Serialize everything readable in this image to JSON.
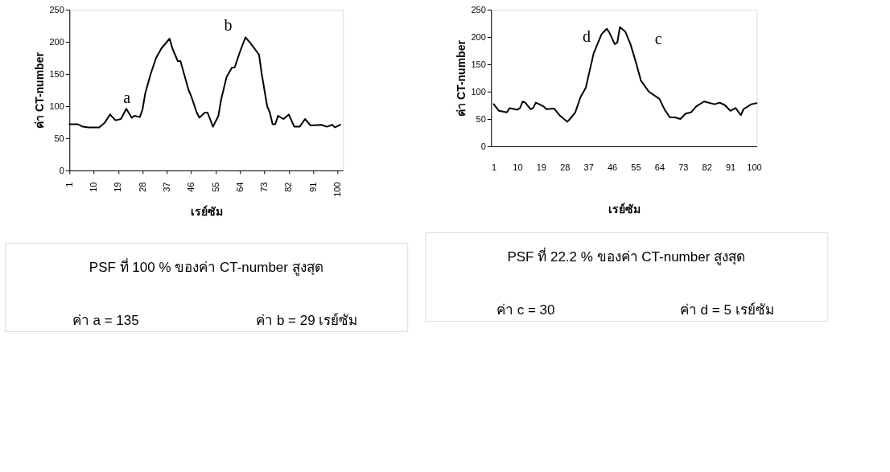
{
  "chart_data": [
    {
      "type": "line",
      "xlabel": "เรย์ซัม",
      "ylabel": "ค่า CT-number",
      "xlim": [
        1,
        102
      ],
      "ylim": [
        0,
        250
      ],
      "xticks": [
        1,
        10,
        19,
        28,
        37,
        46,
        55,
        64,
        73,
        82,
        91,
        100
      ],
      "yticks": [
        0,
        50,
        100,
        150,
        200,
        250
      ],
      "grid": false,
      "x": [
        1,
        4,
        6,
        8,
        12,
        14,
        16,
        18,
        20,
        22,
        24,
        25,
        27,
        28,
        29,
        31,
        33,
        35,
        38,
        39,
        41,
        42,
        45,
        46,
        48,
        49,
        51,
        52,
        54,
        56,
        57,
        59,
        61,
        62,
        64,
        66,
        68,
        71,
        72,
        74,
        75,
        76,
        77,
        78,
        80,
        82,
        84,
        86,
        88,
        90,
        94,
        96,
        98,
        99,
        101
      ],
      "series": [
        {
          "color": "#000000",
          "values": [
            72,
            72,
            68,
            67,
            67,
            74,
            87,
            78,
            80,
            96,
            82,
            85,
            83,
            95,
            120,
            150,
            175,
            190,
            205,
            190,
            170,
            170,
            125,
            115,
            90,
            82,
            90,
            90,
            68,
            85,
            110,
            145,
            160,
            160,
            185,
            207,
            197,
            180,
            150,
            100,
            90,
            72,
            72,
            85,
            80,
            87,
            68,
            68,
            80,
            70,
            71,
            68,
            71,
            67,
            71
          ]
        }
      ],
      "annotations": [
        "a",
        "b",
        "PSF ที่ 100 % ของค่า CT-number สูงสุด",
        "ค่า a = 135",
        "ค่า b = 29 เรย์ซัม"
      ]
    },
    {
      "type": "line",
      "xlabel": "เรย์ซัม",
      "ylabel": "ค่า CT-number",
      "xlim": [
        0,
        101
      ],
      "ylim": [
        0,
        250
      ],
      "xticks": [
        1,
        10,
        19,
        28,
        37,
        46,
        55,
        64,
        73,
        82,
        91,
        100
      ],
      "yticks": [
        0,
        50,
        100,
        150,
        200,
        250
      ],
      "grid": false,
      "x": [
        1,
        3,
        6,
        7,
        10,
        11,
        12,
        13,
        15,
        16,
        17,
        20,
        21,
        24,
        26,
        29,
        30,
        32,
        34,
        36,
        39,
        42,
        44,
        45,
        47,
        48,
        49,
        51,
        53,
        55,
        57,
        60,
        64,
        66,
        68,
        70,
        72,
        74,
        76,
        78,
        81,
        85,
        87,
        89,
        91,
        93,
        95,
        96,
        99,
        101
      ],
      "series": [
        {
          "color": "#000000",
          "values": [
            77,
            65,
            62,
            70,
            67,
            70,
            82,
            80,
            68,
            70,
            80,
            73,
            68,
            69,
            57,
            45,
            50,
            62,
            90,
            107,
            170,
            205,
            215,
            208,
            187,
            190,
            218,
            210,
            187,
            155,
            120,
            100,
            87,
            67,
            53,
            53,
            50,
            60,
            62,
            73,
            82,
            77,
            80,
            75,
            65,
            70,
            57,
            68,
            77,
            79
          ]
        }
      ],
      "annotations": [
        "d",
        "c",
        "PSF ที่ 22.2 % ของค่า CT-number สูงสุด",
        "ค่า c = 30",
        "ค่า d = 5 เรย์ซัม"
      ]
    }
  ]
}
